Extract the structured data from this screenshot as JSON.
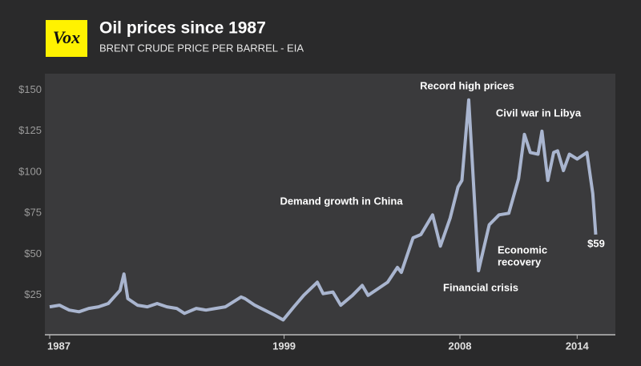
{
  "logo": "Vox",
  "chart_data": {
    "type": "line",
    "title": "Oil prices since 1987",
    "subtitle": "BRENT CRUDE PRICE PER BARREL - EIA",
    "x": [
      1987.0,
      1987.5,
      1988.0,
      1988.5,
      1989.0,
      1989.5,
      1990.0,
      1990.6,
      1990.8,
      1991.0,
      1991.5,
      1992.0,
      1992.5,
      1993.0,
      1993.5,
      1993.9,
      1994.5,
      1995.0,
      1995.5,
      1996.0,
      1996.8,
      1997.0,
      1997.5,
      1998.0,
      1998.5,
      1998.95,
      1999.5,
      2000.0,
      2000.7,
      2001.0,
      2001.5,
      2001.9,
      2002.5,
      2003.0,
      2003.3,
      2003.8,
      2004.3,
      2004.8,
      2005.0,
      2005.6,
      2006.0,
      2006.6,
      2007.0,
      2007.5,
      2007.9,
      2008.1,
      2008.45,
      2008.95,
      2009.5,
      2010.0,
      2010.5,
      2011.0,
      2011.3,
      2011.6,
      2012.0,
      2012.2,
      2012.5,
      2012.8,
      2013.0,
      2013.3,
      2013.6,
      2014.0,
      2014.5,
      2014.8,
      2014.95
    ],
    "series": [
      {
        "name": "Brent crude",
        "color": "#a9b5cf",
        "values": [
          18,
          19,
          16,
          15,
          17,
          18,
          20,
          28,
          38,
          23,
          19,
          18,
          20,
          18,
          17,
          14,
          17,
          16,
          17,
          18,
          24,
          23,
          19,
          16,
          13,
          10,
          18,
          25,
          33,
          26,
          27,
          19,
          25,
          31,
          25,
          29,
          33,
          42,
          39,
          60,
          62,
          74,
          55,
          72,
          91,
          95,
          144,
          40,
          68,
          74,
          75,
          96,
          123,
          112,
          111,
          125,
          95,
          112,
          113,
          101,
          111,
          108,
          112,
          87,
          62
        ]
      }
    ],
    "xlim": [
      1987,
      2015.3
    ],
    "xticks": [
      1987,
      1999,
      2008,
      2014
    ],
    "ylim": [
      0,
      160
    ],
    "yticks": [
      {
        "value": 25,
        "label": "$25"
      },
      {
        "value": 50,
        "label": "$50"
      },
      {
        "value": 75,
        "label": "$75"
      },
      {
        "value": 100,
        "label": "$100"
      },
      {
        "value": 125,
        "label": "$125"
      },
      {
        "value": 150,
        "label": "$150"
      }
    ],
    "grid": false,
    "annotations": [
      {
        "text": [
          "Record high prices"
        ]
      },
      {
        "text": [
          "Civil war in Libya"
        ]
      },
      {
        "text": [
          "Demand growth in China"
        ]
      },
      {
        "text": [
          "Economic",
          "recovery"
        ]
      },
      {
        "text": [
          "Financial crisis"
        ]
      },
      {
        "text": [
          "$59"
        ]
      }
    ]
  }
}
